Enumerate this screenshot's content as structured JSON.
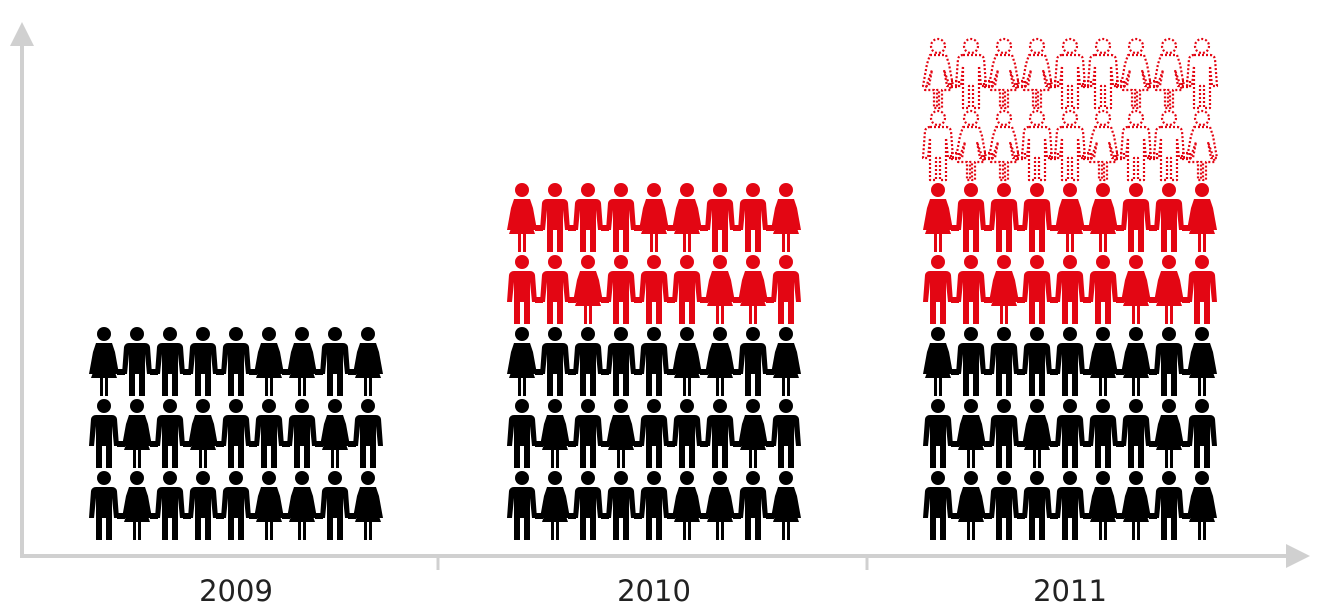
{
  "colors": {
    "base": "#000000",
    "added": "#e30613",
    "projected": "#e30613",
    "axis": "#d0d0d0",
    "text": "#222222"
  },
  "icons": {
    "man": "man-icon",
    "woman": "woman-icon"
  },
  "chart_data": {
    "type": "pictograph",
    "categories": [
      "2009",
      "2010",
      "2011"
    ],
    "unit": "person icons",
    "icons_per_row": 9,
    "series": [
      {
        "key": "base",
        "style": "solid black",
        "rows": [
          3,
          3,
          3
        ]
      },
      {
        "key": "added",
        "style": "solid red",
        "rows": [
          0,
          2,
          2
        ]
      },
      {
        "key": "projected",
        "style": "dotted red outline",
        "rows": [
          0,
          0,
          2
        ]
      }
    ],
    "totals_icons": [
      27,
      45,
      63
    ],
    "row_patterns": [
      [
        "m",
        "w",
        "m",
        "m",
        "m",
        "w",
        "w",
        "m",
        "w"
      ],
      [
        "m",
        "w",
        "m",
        "w",
        "m",
        "m",
        "m",
        "w",
        "m"
      ],
      [
        "w",
        "m",
        "m",
        "m",
        "m",
        "w",
        "w",
        "m",
        "w"
      ],
      [
        "m",
        "m",
        "w",
        "m",
        "m",
        "m",
        "w",
        "w",
        "m"
      ],
      [
        "w",
        "m",
        "m",
        "m",
        "w",
        "w",
        "m",
        "m",
        "w"
      ],
      [
        "m",
        "w",
        "w",
        "m",
        "m",
        "w",
        "m",
        "m",
        "w"
      ],
      [
        "w",
        "m",
        "w",
        "w",
        "m",
        "m",
        "w",
        "w",
        "m"
      ]
    ]
  },
  "labels": {
    "x0": "2009",
    "x1": "2010",
    "x2": "2011"
  }
}
